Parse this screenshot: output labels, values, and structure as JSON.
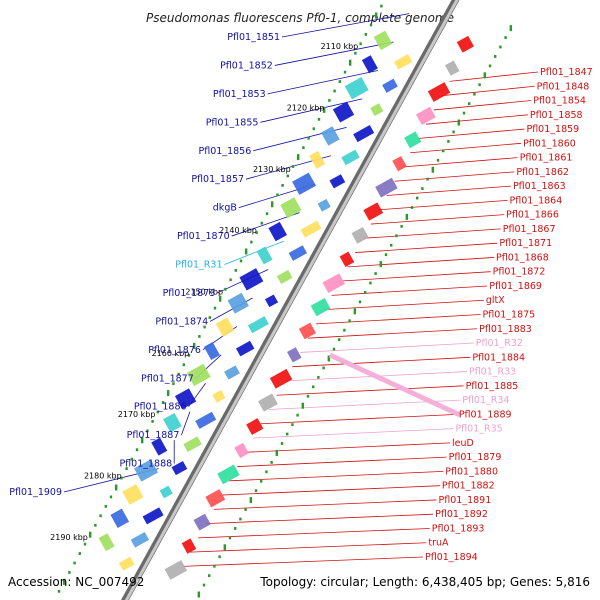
{
  "title": "Pseudomonas fluorescens Pf0-1, complete genome",
  "accession": "Accession: NC_007492",
  "topology": "Topology: circular; Length: 6,438,405 bp; Genes: 5,816",
  "colors": {
    "left_label": "#1010a0",
    "right_label": "#d01010",
    "rna_left": "#20b0f0",
    "rna_right": "#f0a0d0",
    "backbone": "#999999",
    "tick_dots": "#2a9a2a"
  },
  "ticks": [
    "2110 kbp",
    "2120 kbp",
    "2130 kbp",
    "2140 kbp",
    "2150 kbp",
    "2160 kbp",
    "2170 kbp",
    "2180 kbp",
    "2190 kbp"
  ],
  "left_labels": [
    {
      "text": "Pfl01_1851",
      "type": "gene"
    },
    {
      "text": "Pfl01_1852",
      "type": "gene"
    },
    {
      "text": "Pfl01_1853",
      "type": "gene"
    },
    {
      "text": "Pfl01_1855",
      "type": "gene"
    },
    {
      "text": "Pfl01_1856",
      "type": "gene"
    },
    {
      "text": "Pfl01_1857",
      "type": "gene"
    },
    {
      "text": "dkgB",
      "type": "gene"
    },
    {
      "text": "Pfl01_1870",
      "type": "gene"
    },
    {
      "text": "Pfl01_R31",
      "type": "rna"
    },
    {
      "text": "Pfl01_1873",
      "type": "gene"
    },
    {
      "text": "Pfl01_1874",
      "type": "gene"
    },
    {
      "text": "Pfl01_1876",
      "type": "gene"
    },
    {
      "text": "Pfl01_1877",
      "type": "gene"
    },
    {
      "text": "Pfl01_1886",
      "type": "gene"
    },
    {
      "text": "Pfl01_1887",
      "type": "gene"
    },
    {
      "text": "Pfl01_1888",
      "type": "gene"
    },
    {
      "text": "Pfl01_1909",
      "type": "gene"
    }
  ],
  "right_labels": [
    {
      "text": "Pfl01_1847",
      "type": "gene"
    },
    {
      "text": "Pfl01_1848",
      "type": "gene"
    },
    {
      "text": "Pfl01_1854",
      "type": "gene"
    },
    {
      "text": "Pfl01_1858",
      "type": "gene"
    },
    {
      "text": "Pfl01_1859",
      "type": "gene"
    },
    {
      "text": "Pfl01_1860",
      "type": "gene"
    },
    {
      "text": "Pfl01_1861",
      "type": "gene"
    },
    {
      "text": "Pfl01_1862",
      "type": "gene"
    },
    {
      "text": "Pfl01_1863",
      "type": "gene"
    },
    {
      "text": "Pfl01_1864",
      "type": "gene"
    },
    {
      "text": "Pfl01_1866",
      "type": "gene"
    },
    {
      "text": "Pfl01_1867",
      "type": "gene"
    },
    {
      "text": "Pfl01_1871",
      "type": "gene"
    },
    {
      "text": "Pfl01_1868",
      "type": "gene"
    },
    {
      "text": "Pfl01_1872",
      "type": "gene"
    },
    {
      "text": "Pfl01_1869",
      "type": "gene"
    },
    {
      "text": "gltX",
      "type": "gene"
    },
    {
      "text": "Pfl01_1875",
      "type": "gene"
    },
    {
      "text": "Pfl01_1883",
      "type": "gene"
    },
    {
      "text": "Pfl01_R32",
      "type": "rna"
    },
    {
      "text": "Pfl01_1884",
      "type": "gene"
    },
    {
      "text": "Pfl01_R33",
      "type": "rna"
    },
    {
      "text": "Pfl01_1885",
      "type": "gene"
    },
    {
      "text": "Pfl01_R34",
      "type": "rna"
    },
    {
      "text": "Pfl01_1889",
      "type": "gene"
    },
    {
      "text": "Pfl01_R35",
      "type": "rna"
    },
    {
      "text": "leuD",
      "type": "gene"
    },
    {
      "text": "Pfl01_1879",
      "type": "gene"
    },
    {
      "text": "Pfl01_1880",
      "type": "gene"
    },
    {
      "text": "Pfl01_1882",
      "type": "gene"
    },
    {
      "text": "Pfl01_1891",
      "type": "gene"
    },
    {
      "text": "Pfl01_1892",
      "type": "gene"
    },
    {
      "text": "Pfl01_1893",
      "type": "gene"
    },
    {
      "text": "truA",
      "type": "gene"
    },
    {
      "text": "Pfl01_1894",
      "type": "gene"
    }
  ]
}
